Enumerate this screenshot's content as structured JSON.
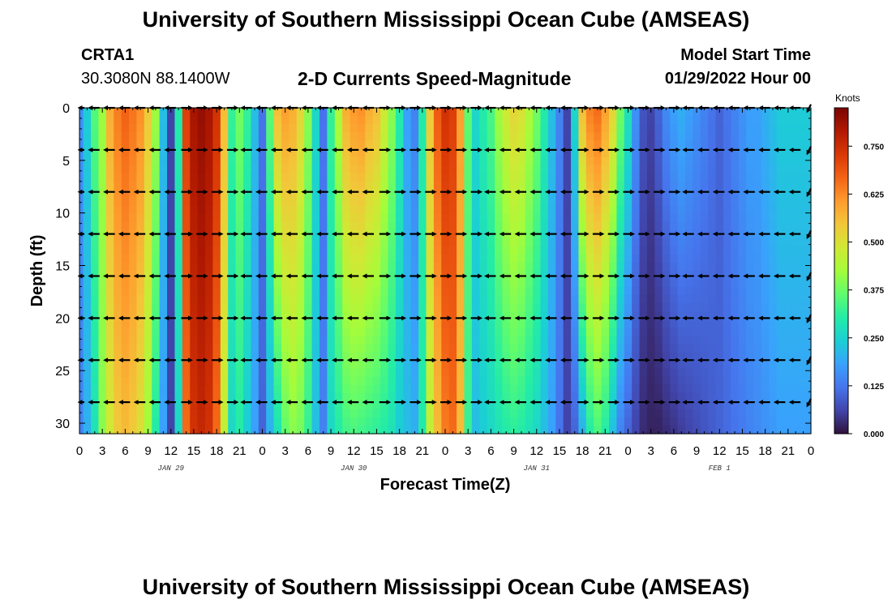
{
  "header": {
    "title": "University of Southern Mississippi Ocean Cube (AMSEAS)",
    "station": "CRTA1",
    "coords": "30.3080N  88.1400W",
    "variable": "2-D Currents Speed-Magnitude",
    "start_label": "Model Start Time",
    "start_value": "01/29/2022 Hour 00"
  },
  "footer": {
    "title": "University of Southern Mississippi Ocean Cube (AMSEAS)"
  },
  "colors": {
    "ramp": [
      "#30123b",
      "#4145ab",
      "#4675ed",
      "#39a2fc",
      "#1bcfd4",
      "#24eca6",
      "#61fc6c",
      "#a4fc3b",
      "#d1e834",
      "#f3c63a",
      "#fe9b2d",
      "#f36315",
      "#d93806",
      "#b11901",
      "#7a0403"
    ]
  },
  "chart_data": {
    "type": "heatmap",
    "title": "2-D Currents Speed-Magnitude",
    "xlabel": "Forecast Time(Z)",
    "ylabel": "Depth (ft)",
    "x_unit": "hours since 01/29/2022 00Z",
    "xlim": [
      0,
      96
    ],
    "ylim": [
      31,
      0
    ],
    "xticks": [
      0,
      3,
      6,
      9,
      12,
      15,
      18,
      21,
      24,
      27,
      30,
      33,
      36,
      39,
      42,
      45,
      48,
      51,
      54,
      57,
      60,
      63,
      66,
      69,
      72,
      75,
      78,
      81,
      84,
      87,
      90,
      93,
      96
    ],
    "xtick_labels": [
      "0",
      "3",
      "6",
      "9",
      "12",
      "15",
      "18",
      "21",
      "0",
      "3",
      "6",
      "9",
      "12",
      "15",
      "18",
      "21",
      "0",
      "3",
      "6",
      "9",
      "12",
      "15",
      "18",
      "21",
      "0",
      "3",
      "6",
      "9",
      "12",
      "15",
      "18",
      "21",
      "0"
    ],
    "date_labels": [
      {
        "x": 12,
        "label": "JAN 29"
      },
      {
        "x": 36,
        "label": "JAN 30"
      },
      {
        "x": 60,
        "label": "JAN 31"
      },
      {
        "x": 84,
        "label": "FEB 1"
      }
    ],
    "yticks": [
      0,
      5,
      10,
      15,
      20,
      25,
      30
    ],
    "ytick_labels": [
      "0",
      "5",
      "10",
      "15",
      "20",
      "25",
      "30"
    ],
    "colorbar": {
      "label": "Knots",
      "min": 0,
      "max": 0.85,
      "ticks": [
        0.0,
        0.125,
        0.25,
        0.375,
        0.5,
        0.625,
        0.75
      ],
      "tick_labels": [
        "0.000",
        "0.125",
        "0.250",
        "0.375",
        "0.500",
        "0.625",
        "0.750"
      ]
    },
    "speed_profile": {
      "hours": [
        0,
        1,
        2,
        3,
        4,
        5,
        6,
        7,
        8,
        9,
        10,
        11,
        12,
        13,
        14,
        15,
        16,
        17,
        18,
        19,
        20,
        21,
        22,
        23,
        24,
        25,
        26,
        27,
        28,
        29,
        30,
        31,
        32,
        33,
        34,
        35,
        36,
        37,
        38,
        39,
        40,
        41,
        42,
        43,
        44,
        45,
        46,
        47,
        48,
        49,
        50,
        51,
        52,
        53,
        54,
        55,
        56,
        57,
        58,
        59,
        60,
        61,
        62,
        63,
        64,
        65,
        66,
        67,
        68,
        69,
        70,
        71,
        72,
        73,
        74,
        75,
        76,
        77,
        78,
        79,
        80,
        81,
        82,
        83,
        84,
        85,
        86,
        87,
        88,
        89,
        90,
        91,
        92,
        93,
        94,
        95,
        96
      ],
      "surface_knots": [
        0.16,
        0.24,
        0.35,
        0.42,
        0.58,
        0.64,
        0.67,
        0.65,
        0.62,
        0.54,
        0.42,
        0.22,
        0.06,
        0.3,
        0.72,
        0.8,
        0.82,
        0.8,
        0.74,
        0.56,
        0.32,
        0.38,
        0.32,
        0.22,
        0.12,
        0.36,
        0.56,
        0.6,
        0.58,
        0.52,
        0.4,
        0.26,
        0.12,
        0.32,
        0.44,
        0.58,
        0.61,
        0.62,
        0.58,
        0.56,
        0.48,
        0.4,
        0.3,
        0.18,
        0.14,
        0.3,
        0.54,
        0.68,
        0.74,
        0.72,
        0.6,
        0.36,
        0.26,
        0.3,
        0.34,
        0.42,
        0.48,
        0.52,
        0.5,
        0.44,
        0.38,
        0.3,
        0.22,
        0.14,
        0.06,
        0.26,
        0.56,
        0.64,
        0.66,
        0.6,
        0.52,
        0.38,
        0.28,
        0.16,
        0.08,
        0.06,
        0.1,
        0.15,
        0.18,
        0.2,
        0.18,
        0.16,
        0.14,
        0.12,
        0.1,
        0.12,
        0.14,
        0.16,
        0.18,
        0.18,
        0.2,
        0.22,
        0.24,
        0.24,
        0.24,
        0.24,
        0.24
      ],
      "bottom_knots": [
        0.14,
        0.2,
        0.28,
        0.4,
        0.48,
        0.54,
        0.56,
        0.54,
        0.5,
        0.42,
        0.3,
        0.18,
        0.06,
        0.26,
        0.66,
        0.74,
        0.76,
        0.74,
        0.66,
        0.46,
        0.26,
        0.3,
        0.24,
        0.18,
        0.1,
        0.2,
        0.28,
        0.36,
        0.4,
        0.38,
        0.32,
        0.22,
        0.14,
        0.26,
        0.3,
        0.33,
        0.34,
        0.33,
        0.32,
        0.31,
        0.3,
        0.28,
        0.24,
        0.22,
        0.2,
        0.3,
        0.46,
        0.56,
        0.64,
        0.66,
        0.56,
        0.32,
        0.22,
        0.24,
        0.26,
        0.28,
        0.3,
        0.31,
        0.3,
        0.28,
        0.26,
        0.22,
        0.18,
        0.12,
        0.06,
        0.1,
        0.2,
        0.3,
        0.34,
        0.3,
        0.22,
        0.14,
        0.1,
        0.06,
        0.03,
        0.02,
        0.02,
        0.03,
        0.04,
        0.05,
        0.06,
        0.07,
        0.08,
        0.09,
        0.1,
        0.11,
        0.12,
        0.13,
        0.14,
        0.15,
        0.16,
        0.17,
        0.18,
        0.18,
        0.18,
        0.18,
        0.18
      ]
    },
    "vectors": {
      "depths_ft": [
        0,
        4,
        8,
        12,
        16,
        20,
        24,
        28
      ],
      "hours": [
        0,
        2,
        4,
        6,
        8,
        10,
        12,
        14,
        16,
        18,
        20,
        22,
        24,
        26,
        28,
        30,
        32,
        34,
        36,
        38,
        40,
        42,
        44,
        46,
        48,
        50,
        52,
        54,
        56,
        58,
        60,
        62,
        64,
        66,
        68,
        70,
        72,
        74,
        76,
        78,
        80,
        82,
        84,
        86,
        88,
        90,
        92,
        94,
        96
      ],
      "directions": [
        "W",
        "W",
        "W",
        "W",
        "W",
        "W",
        "W",
        "E",
        "E",
        "E",
        "E",
        "W",
        "W",
        "W",
        "W",
        "W",
        "W",
        "W",
        "W",
        "W",
        "E",
        "E",
        "E",
        "E",
        "E",
        "E",
        "E",
        "W",
        "W",
        "W",
        "W",
        "W",
        "W",
        "E",
        "E",
        "E",
        "E",
        "E",
        "E",
        "E",
        "W",
        "W",
        "W",
        "W",
        "W",
        "W",
        "W",
        "W",
        "SW"
      ]
    }
  }
}
